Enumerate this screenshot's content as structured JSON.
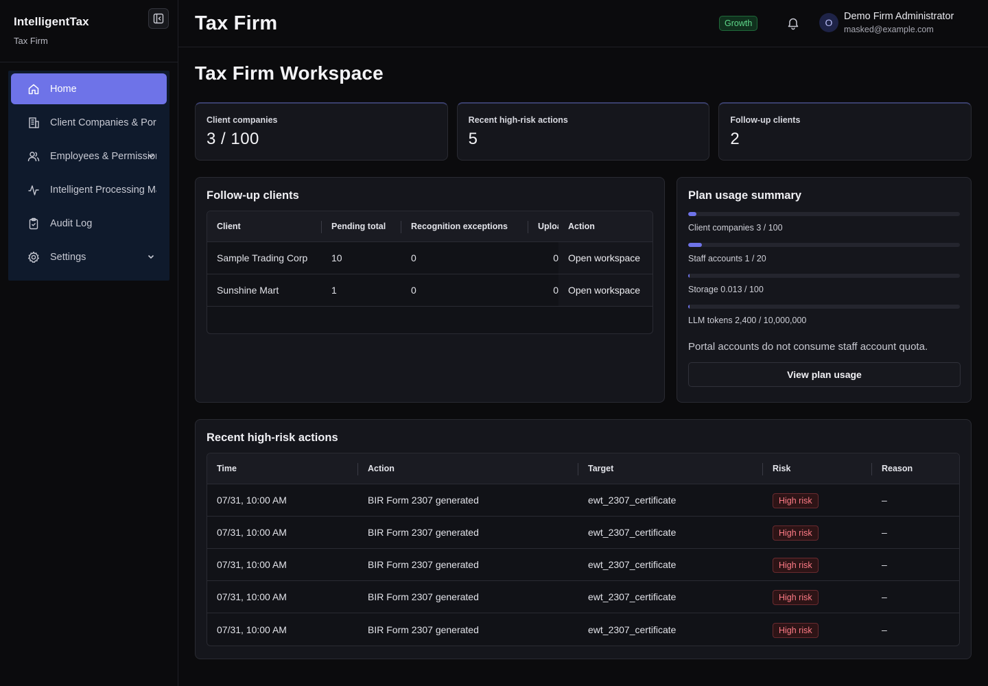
{
  "brand": {
    "name": "IntelligentTax",
    "subtitle": "Tax Firm"
  },
  "sidebar": {
    "items": [
      {
        "label": "Home",
        "icon": "home-icon",
        "active": true
      },
      {
        "label": "Client Companies & Portal",
        "icon": "building-icon"
      },
      {
        "label": "Employees & Permissions",
        "icon": "users-icon",
        "expandable": true
      },
      {
        "label": "Intelligent Processing Management",
        "icon": "activity-icon"
      },
      {
        "label": "Audit Log",
        "icon": "clipboard-icon"
      },
      {
        "label": "Settings",
        "icon": "gear-icon",
        "expandable": true
      }
    ]
  },
  "header": {
    "title": "Tax Firm",
    "plan_badge": "Growth",
    "user": {
      "initial": "O",
      "name": "Demo Firm Administrator",
      "email": "masked@example.com"
    }
  },
  "page": {
    "title": "Tax Firm Workspace"
  },
  "stats": [
    {
      "label": "Client companies",
      "value": "3 / 100"
    },
    {
      "label": "Recent high-risk actions",
      "value": "5"
    },
    {
      "label": "Follow-up clients",
      "value": "2"
    }
  ],
  "followup": {
    "title": "Follow-up clients",
    "columns": [
      "Client",
      "Pending total",
      "Recognition exceptions",
      "Uploads",
      "Action"
    ],
    "rows": [
      {
        "client": "Sample Trading Corp",
        "pending": "10",
        "exceptions": "0",
        "uploads": "0",
        "action": "Open workspace"
      },
      {
        "client": "Sunshine Mart",
        "pending": "1",
        "exceptions": "0",
        "uploads": "0",
        "action": "Open workspace"
      }
    ]
  },
  "plan": {
    "title": "Plan usage summary",
    "accent": "#6e73e8",
    "items": [
      {
        "label": "Client companies 3 / 100",
        "fraction": 0.03
      },
      {
        "label": "Staff accounts 1 / 20",
        "fraction": 0.05
      },
      {
        "label": "Storage 0.013 / 100",
        "fraction": 0.00013
      },
      {
        "label": "LLM tokens 2,400 / 10,000,000",
        "fraction": 0.00024
      }
    ],
    "note": "Portal accounts do not consume staff account quota.",
    "button": "View plan usage"
  },
  "risk": {
    "title": "Recent high-risk actions",
    "columns": [
      "Time",
      "Action",
      "Target",
      "Risk",
      "Reason"
    ],
    "rows": [
      {
        "time": "07/31, 10:00 AM",
        "action": "BIR Form 2307 generated",
        "target": "ewt_2307_certificate",
        "risk": "High risk",
        "reason": "–"
      },
      {
        "time": "07/31, 10:00 AM",
        "action": "BIR Form 2307 generated",
        "target": "ewt_2307_certificate",
        "risk": "High risk",
        "reason": "–"
      },
      {
        "time": "07/31, 10:00 AM",
        "action": "BIR Form 2307 generated",
        "target": "ewt_2307_certificate",
        "risk": "High risk",
        "reason": "–"
      },
      {
        "time": "07/31, 10:00 AM",
        "action": "BIR Form 2307 generated",
        "target": "ewt_2307_certificate",
        "risk": "High risk",
        "reason": "–"
      },
      {
        "time": "07/31, 10:00 AM",
        "action": "BIR Form 2307 generated",
        "target": "ewt_2307_certificate",
        "risk": "High risk",
        "reason": "–"
      }
    ]
  }
}
